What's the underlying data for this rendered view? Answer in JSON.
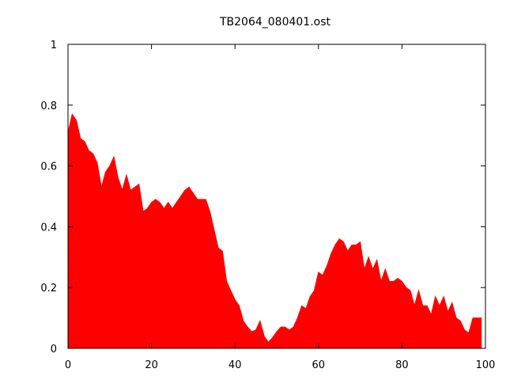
{
  "chart_data": {
    "type": "area",
    "title": "TB2064_080401.ost",
    "xlabel": "",
    "ylabel": "",
    "xlim": [
      0,
      100
    ],
    "ylim": [
      0,
      1
    ],
    "x_ticks": [
      0,
      20,
      40,
      60,
      80,
      100
    ],
    "y_ticks": [
      0,
      0.2,
      0.4,
      0.6,
      0.8,
      1
    ],
    "x_tick_labels": [
      "0",
      "20",
      "40",
      "60",
      "80",
      "100"
    ],
    "y_tick_labels": [
      "0",
      "0.2",
      "0.4",
      "0.6",
      "0.8",
      "1"
    ],
    "grid": false,
    "fill_color": "#ff0000",
    "series": [
      {
        "x": [
          0,
          1,
          2,
          3,
          4,
          5,
          6,
          7,
          8,
          9,
          10,
          11,
          12,
          13,
          14,
          15,
          16,
          17,
          18,
          19,
          20,
          21,
          22,
          23,
          24,
          25,
          26,
          27,
          28,
          29,
          30,
          31,
          32,
          33,
          34,
          35,
          36,
          37,
          38,
          39,
          40,
          41,
          42,
          43,
          44,
          45,
          46,
          47,
          48,
          49,
          50,
          51,
          52,
          53,
          54,
          55,
          56,
          57,
          58,
          59,
          60,
          61,
          62,
          63,
          64,
          65,
          66,
          67,
          68,
          69,
          70,
          71,
          72,
          73,
          74,
          75,
          76,
          77,
          78,
          79,
          80,
          81,
          82,
          83,
          84,
          85,
          86,
          87,
          88,
          89,
          90,
          91,
          92,
          93,
          94,
          95,
          96,
          97,
          98,
          99
        ],
        "y": [
          0.71,
          0.77,
          0.75,
          0.69,
          0.68,
          0.65,
          0.64,
          0.61,
          0.53,
          0.58,
          0.6,
          0.63,
          0.56,
          0.52,
          0.57,
          0.52,
          0.53,
          0.54,
          0.45,
          0.46,
          0.48,
          0.49,
          0.48,
          0.46,
          0.48,
          0.46,
          0.48,
          0.5,
          0.52,
          0.53,
          0.51,
          0.49,
          0.49,
          0.49,
          0.45,
          0.39,
          0.33,
          0.32,
          0.22,
          0.19,
          0.16,
          0.14,
          0.09,
          0.07,
          0.055,
          0.06,
          0.09,
          0.04,
          0.02,
          0.035,
          0.055,
          0.07,
          0.07,
          0.06,
          0.07,
          0.1,
          0.14,
          0.13,
          0.17,
          0.19,
          0.25,
          0.24,
          0.27,
          0.31,
          0.34,
          0.36,
          0.35,
          0.32,
          0.34,
          0.34,
          0.35,
          0.26,
          0.3,
          0.26,
          0.29,
          0.22,
          0.26,
          0.22,
          0.22,
          0.23,
          0.22,
          0.2,
          0.19,
          0.14,
          0.19,
          0.14,
          0.14,
          0.11,
          0.17,
          0.14,
          0.17,
          0.12,
          0.15,
          0.1,
          0.09,
          0.06,
          0.05,
          0.1,
          0.1,
          0.1
        ]
      }
    ]
  }
}
